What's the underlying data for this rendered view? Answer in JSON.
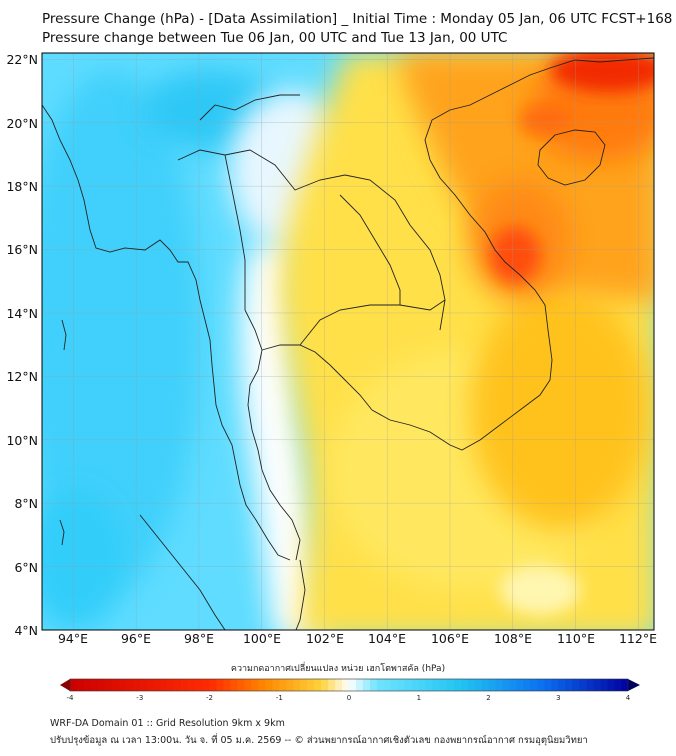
{
  "header": {
    "title_line1": "Pressure Change (hPa) - [Data Assimilation] _ Initial Time : Monday 05 Jan, 06 UTC FCST+168",
    "title_line2": "Pressure change between Tue 06 Jan, 00 UTC and Tue 13 Jan, 00 UTC"
  },
  "map": {
    "lat_labels": [
      "22°N",
      "20°N",
      "18°N",
      "16°N",
      "14°N",
      "12°N",
      "10°N",
      "8°N",
      "6°N",
      "4°N"
    ],
    "lon_labels": [
      "94°E",
      "96°E",
      "98°E",
      "100°E",
      "102°E",
      "104°E",
      "106°E",
      "108°E",
      "110°E",
      "112°E"
    ],
    "extent": {
      "lat_min": 4,
      "lat_max": 22.2,
      "lon_min": 93,
      "lon_max": 112.5
    },
    "gridlines": true,
    "field": "pressure change (hPa)",
    "colors": {
      "negative_strong": "#cc0000",
      "negative_mid": "#ff8800",
      "negative_weak": "#ffd23a",
      "neutral": "#ffffff",
      "positive_weak": "#6fe4ff",
      "positive_mid": "#22c4f2",
      "positive_strong": "#0000a0"
    }
  },
  "colorbar": {
    "title": "ความกดอากาศเปลี่ยนแปลง หน่วย เฮกโตพาสคัล (hPa)",
    "min": -4,
    "max": 4,
    "ticks": [
      "-4",
      "-3",
      "-2",
      "-1",
      "0",
      "1",
      "2",
      "3",
      "4"
    ]
  },
  "footer": {
    "line1": "WRF-DA Domain 01 :: Grid Resolution 9km x 9km",
    "line2": "ปรับปรุงข้อมูล ณ เวลา 13:00น. วัน จ. ที่ 05 ม.ค. 2569 -- © ส่วนพยากรณ์อากาศเชิงตัวเลข กองพยากรณ์อากาศ กรมอุตุนิยมวิทยา"
  }
}
